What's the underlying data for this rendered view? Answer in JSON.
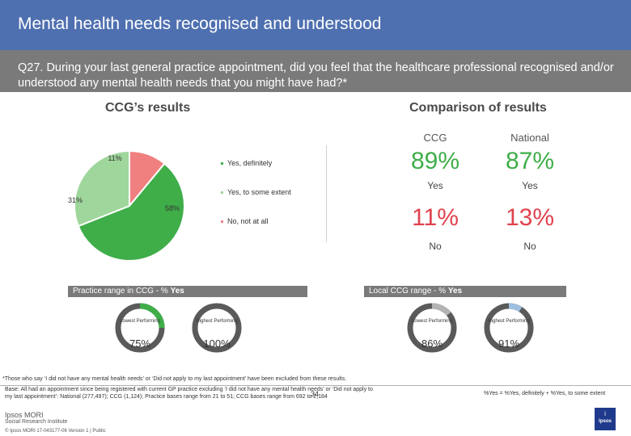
{
  "title": "Mental health needs recognised and understood",
  "question": "Q27. During your last general practice appointment, did you feel that the healthcare professional recognised and/or understood any mental health needs that you might have had?*",
  "ccg_results": {
    "heading": "CCG’s results",
    "chart_data": {
      "type": "pie",
      "series": [
        {
          "label": "Yes, definitely",
          "value": 58,
          "display": "58%",
          "color": "#3fae49"
        },
        {
          "label": "Yes, to some extent",
          "value": 31,
          "display": "31%",
          "color": "#9fd69b"
        },
        {
          "label": "No, not at all",
          "value": 11,
          "display": "11%",
          "color": "#f08080"
        }
      ]
    }
  },
  "comparison": {
    "heading": "Comparison of results",
    "columns": [
      "CCG",
      "National"
    ],
    "yes": [
      "89%",
      "87%"
    ],
    "yes_label": "Yes",
    "no": [
      "11%",
      "13%"
    ],
    "no_label": "No",
    "colors": {
      "yes": "#3fae49",
      "no": "#e0424d"
    }
  },
  "practice_range": {
    "bar_text": "Practice range in CCG - % ",
    "bar_bold": "Yes",
    "lowest_label": "Lowest Performing",
    "highest_label": "Highest Performing",
    "lowest_value": "75%",
    "lowest_fraction": 0.75,
    "highest_value": "100%",
    "highest_fraction": 1.0
  },
  "local_ccg_range": {
    "bar_text": "Local CCG range - % ",
    "bar_bold": "Yes",
    "lowest_label": "Lowest Performing",
    "highest_label": "Highest Performing",
    "lowest_value": "86%",
    "lowest_fraction": 0.86,
    "highest_value": "91%",
    "highest_fraction": 0.91
  },
  "notes": {
    "excluded": "*Those who say ‘I did not have any mental health needs’ or ‘Did not apply to my last appointment’ have been excluded from these results.",
    "base1": "Base: All had an appointment since being registered with current GP practice excluding ‘I did not have any mental health needs’ or ‘Did not apply to",
    "base2": "my last appointment’: National (277,497); CCG (1,124); Practice bases range from 21 to 51; CCG bases range from 692 to 2,184",
    "formula": "%Yes = %Yes, definitely + %Yes, to some extent"
  },
  "footer": {
    "brand1": "Ipsos MORI",
    "brand2": "Social Research Institute",
    "copyright": "© Ipsos MORI     17-043177-06 Version 1 | Public",
    "page": "34",
    "logo_top": "i",
    "logo_text": "Ipsos"
  }
}
